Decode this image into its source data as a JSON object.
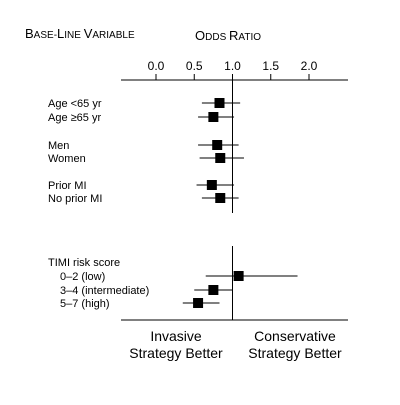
{
  "header": {
    "variable_title": "Base-Line Variable",
    "variable_title_first": [
      "B",
      "L",
      "V"
    ],
    "variable_title_rest": [
      "ASE",
      "-",
      "INE",
      " ",
      "ARIABLE"
    ],
    "odds_title_first": [
      "O",
      "R"
    ],
    "odds_title_rest": [
      "DDS",
      " ",
      "ATIO"
    ]
  },
  "footer": {
    "left_line1": "Invasive",
    "left_line2": "Strategy Better",
    "right_line1": "Conservative",
    "right_line2": "Strategy Better"
  },
  "chart_data": {
    "type": "forest",
    "title": "Odds Ratio",
    "xlabel": "Odds Ratio",
    "xlim": [
      0.0,
      2.0
    ],
    "xticks": [
      0.0,
      0.5,
      1.0,
      1.5,
      2.0
    ],
    "xtick_labels": [
      "0.0",
      "0.5",
      "1.0",
      "1.5",
      "2.0"
    ],
    "reference_line": 1.0,
    "groups": [
      {
        "name": "",
        "rows": [
          {
            "label": "Age <65 yr",
            "or": 0.83,
            "lo": 0.6,
            "hi": 1.1
          },
          {
            "label": "Age ≥65 yr",
            "or": 0.75,
            "lo": 0.55,
            "hi": 1.02
          }
        ]
      },
      {
        "name": "",
        "rows": [
          {
            "label": "Men",
            "or": 0.8,
            "lo": 0.55,
            "hi": 1.08
          },
          {
            "label": "Women",
            "or": 0.84,
            "lo": 0.57,
            "hi": 1.15
          }
        ]
      },
      {
        "name": "",
        "rows": [
          {
            "label": "Prior MI",
            "or": 0.73,
            "lo": 0.53,
            "hi": 1.02
          },
          {
            "label": "No prior MI",
            "or": 0.84,
            "lo": 0.6,
            "hi": 1.08
          }
        ]
      },
      {
        "name": "TIMI risk score",
        "rows": [
          {
            "label": "0–2 (low)",
            "or": 1.08,
            "lo": 0.65,
            "hi": 1.85
          },
          {
            "label": "3–4 (intermediate)",
            "or": 0.75,
            "lo": 0.5,
            "hi": 1.0
          },
          {
            "label": "5–7 (high)",
            "or": 0.55,
            "lo": 0.35,
            "hi": 0.83
          }
        ]
      }
    ]
  }
}
